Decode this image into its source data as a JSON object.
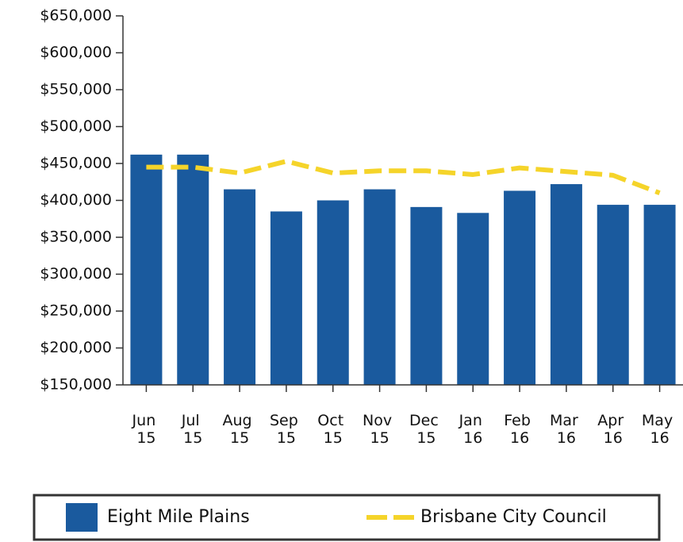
{
  "chart_data": {
    "type": "bar_line",
    "categories": [
      "Jun 15",
      "Jul 15",
      "Aug 15",
      "Sep 15",
      "Oct 15",
      "Nov 15",
      "Dec 15",
      "Jan 16",
      "Feb 16",
      "Mar 16",
      "Apr 16",
      "May 16"
    ],
    "series": [
      {
        "name": "Eight Mile Plains",
        "type": "bar",
        "color": "#1a5a9e",
        "values": [
          462000,
          462000,
          415000,
          385000,
          400000,
          415000,
          391000,
          383000,
          413000,
          422000,
          394000,
          394000
        ]
      },
      {
        "name": "Brisbane City Council",
        "type": "line",
        "dashed": true,
        "color": "#f5d42a",
        "values": [
          445000,
          445000,
          437000,
          453000,
          437000,
          440000,
          440000,
          435000,
          444000,
          439000,
          434000,
          410000
        ]
      }
    ],
    "ylim": [
      150000,
      650000
    ],
    "yticks": [
      {
        "value": 150000,
        "label": "$150,000"
      },
      {
        "value": 200000,
        "label": "$200,000"
      },
      {
        "value": 250000,
        "label": "$250,000"
      },
      {
        "value": 300000,
        "label": "$300,000"
      },
      {
        "value": 350000,
        "label": "$350,000"
      },
      {
        "value": 400000,
        "label": "$400,000"
      },
      {
        "value": 450000,
        "label": "$450,000"
      },
      {
        "value": 500000,
        "label": "$500,000"
      },
      {
        "value": 550000,
        "label": "$550,000"
      },
      {
        "value": 600000,
        "label": "$600,000"
      },
      {
        "value": 650000,
        "label": "$650,000"
      }
    ],
    "grid": false,
    "legend": "bottom"
  }
}
